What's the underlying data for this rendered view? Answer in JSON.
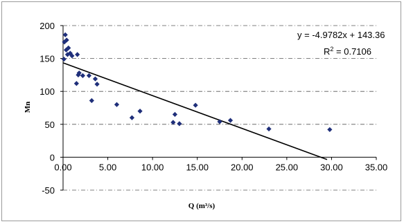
{
  "chart_data": {
    "type": "scatter",
    "title": "",
    "xlabel": "Q (m³/s)",
    "ylabel": "Mn",
    "xlim": [
      0,
      35
    ],
    "ylim": [
      -50,
      200
    ],
    "x_ticks": [
      "0.00",
      "5.00",
      "10.00",
      "15.00",
      "20.00",
      "25.00",
      "30.00",
      "35.00"
    ],
    "y_ticks": [
      "-50",
      "0",
      "50",
      "100",
      "150",
      "200"
    ],
    "grid": "horizontal dash-dot",
    "marker_color": "#1f2f7a",
    "series": [
      {
        "points": [
          [
            0.1,
            149
          ],
          [
            0.15,
            175
          ],
          [
            0.25,
            186
          ],
          [
            0.4,
            178
          ],
          [
            0.35,
            163
          ],
          [
            0.6,
            166
          ],
          [
            0.5,
            156
          ],
          [
            0.8,
            158
          ],
          [
            1.0,
            154
          ],
          [
            1.6,
            156
          ],
          [
            1.5,
            112
          ],
          [
            1.7,
            125
          ],
          [
            1.8,
            128
          ],
          [
            2.2,
            124
          ],
          [
            2.9,
            124
          ],
          [
            3.2,
            86
          ],
          [
            3.6,
            119
          ],
          [
            3.8,
            111
          ],
          [
            6.0,
            80
          ],
          [
            7.7,
            60
          ],
          [
            8.6,
            70
          ],
          [
            12.3,
            53
          ],
          [
            12.5,
            65
          ],
          [
            13.0,
            51
          ],
          [
            14.8,
            79
          ],
          [
            17.5,
            54
          ],
          [
            18.7,
            56
          ],
          [
            23.0,
            43
          ],
          [
            29.8,
            42
          ]
        ]
      }
    ],
    "trendline": {
      "type": "linear",
      "slope": -4.9782,
      "intercept": 143.36,
      "x_range": [
        0,
        29.5
      ],
      "equation": "y = -4.9782x + 143.36",
      "r2_prefix": "R",
      "r2_sup": "2",
      "r2_suffix": " = 0.7106"
    }
  }
}
